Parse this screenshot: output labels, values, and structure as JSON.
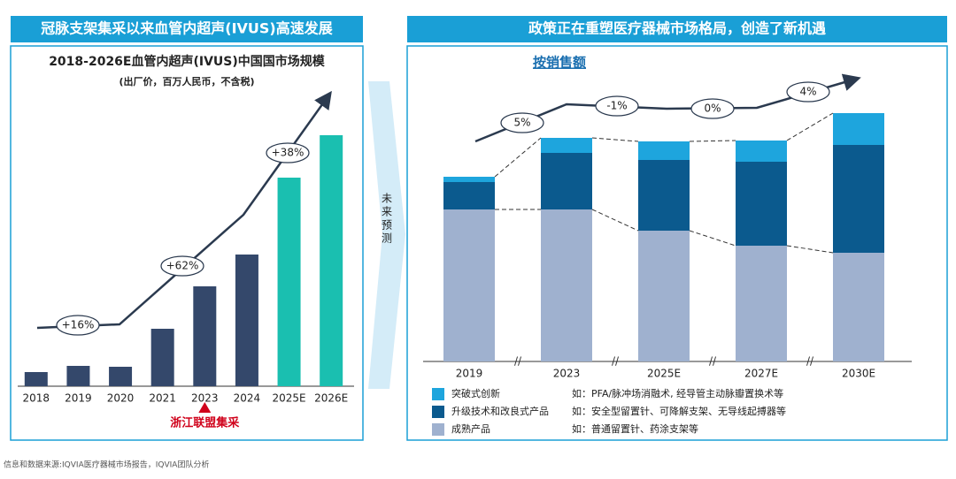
{
  "source": "信息和数据来源:IQVIA医疗器械市场报告，IQVIA团队分析",
  "divider_label": "未来预测",
  "chart_data": [
    {
      "type": "bar",
      "panel_title": "冠脉支架集采以来血管内超声(IVUS)高速发展",
      "title": "2018-2026E血管内超声(IVUS)中国国市场规模",
      "subtitle": "(出厂价，百万人民币，不含税)",
      "categories": [
        "2018",
        "2019",
        "2020",
        "2021",
        "2023",
        "2024",
        "2025E",
        "2026E"
      ],
      "values": [
        16,
        23,
        22,
        65,
        113,
        149,
        236,
        284
      ],
      "colors": [
        "#34486b",
        "#34486b",
        "#34486b",
        "#34486b",
        "#34486b",
        "#34486b",
        "#1abfb0",
        "#1abfb0"
      ],
      "ylim": [
        0,
        300
      ],
      "growth_labels": [
        "+16%",
        "+62%",
        "+38%"
      ],
      "event_label": "浙江联盟集采"
    },
    {
      "type": "stacked_bar",
      "panel_title": "政策正在重塑医疗器械市场格局，创造了新机遇",
      "title": "按销售额",
      "categories": [
        "2019",
        "2023",
        "2025E",
        "2027E",
        "2030E"
      ],
      "series": [
        {
          "name": "成熟产品",
          "color": "#9fb1cf",
          "values": [
            172,
            172,
            148,
            131,
            123
          ],
          "examples": "如：普通留置针、药涂支架等"
        },
        {
          "name": "升级技术和改良式产品",
          "color": "#0b5a8e",
          "values": [
            31,
            64,
            80,
            95,
            122
          ],
          "examples": "如：安全型留置针、可降解支架、无导线起搏器等"
        },
        {
          "name": "突破式创新",
          "color": "#1ea5dd",
          "values": [
            6,
            17,
            21,
            24,
            36
          ],
          "examples": "如：PFA/脉冲场消融术, 经导管主动脉瓣置换术等"
        }
      ],
      "ylim": [
        0,
        300
      ],
      "growth_labels": [
        "5%",
        "-1%",
        "0%",
        "4%"
      ]
    }
  ]
}
